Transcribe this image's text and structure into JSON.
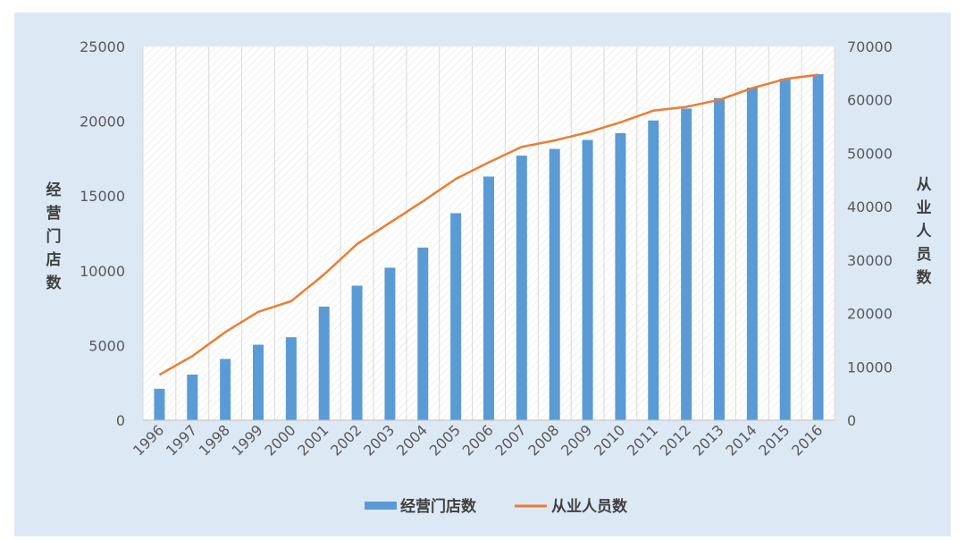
{
  "chart_data": {
    "type": "bar",
    "categories": [
      "1996",
      "1997",
      "1998",
      "1999",
      "2000",
      "2001",
      "2002",
      "2003",
      "2004",
      "2005",
      "2006",
      "2007",
      "2008",
      "2009",
      "2010",
      "2011",
      "2012",
      "2013",
      "2014",
      "2015",
      "2016"
    ],
    "series": [
      {
        "name": "经营门店数",
        "type": "bar",
        "axis": "left",
        "color": "#5b9bd5",
        "values": [
          2100,
          3050,
          4100,
          5050,
          5550,
          7600,
          9000,
          10200,
          11550,
          13850,
          16300,
          17700,
          18150,
          18750,
          19200,
          20050,
          20850,
          21550,
          22250,
          22850,
          23150
        ]
      },
      {
        "name": "从业人员数",
        "type": "line",
        "axis": "right",
        "color": "#ed7d31",
        "values": [
          8500,
          12000,
          16500,
          20300,
          22300,
          27300,
          33000,
          37000,
          41000,
          45200,
          48300,
          51200,
          52400,
          53900,
          55800,
          58000,
          58700,
          60000,
          62200,
          63900,
          64700
        ]
      }
    ],
    "y_left": {
      "title": "经营门店数",
      "ylim": [
        0,
        25000
      ],
      "ticks": [
        "0",
        "5000",
        "10000",
        "15000",
        "20000",
        "25000"
      ]
    },
    "y_right": {
      "title": "从业人员数",
      "ylim": [
        0,
        70000
      ],
      "ticks": [
        "0",
        "10000",
        "20000",
        "30000",
        "40000",
        "50000",
        "60000",
        "70000"
      ]
    },
    "grid": "vertical",
    "legend_position": "bottom",
    "plot_background": "hatched"
  }
}
